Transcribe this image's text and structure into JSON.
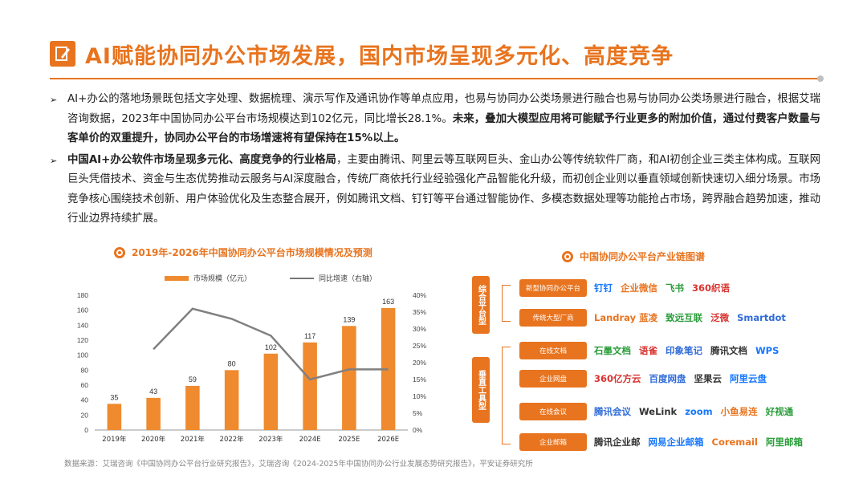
{
  "title": "AI赋能协同办公市场发展，国内市场呈现多元化、高度竞争",
  "bullets": [
    {
      "normal1": "AI+办公的落地场景既包括文字处理、数据梳理、演示写作及通讯协作等单点应用，也易与协同办公类场景进行融合也易与协同办公类场景进行融合，根据艾瑞咨询数据，2023年中国协同办公平台市场规模达到102亿元，同比增长28.1%。",
      "bold1": "未来，叠加大模型应用将可能赋予行业更多的附加价值，通过付费客户数量与客单价的双重提升，协同办公平台的市场增速将有望保持在15%以上。",
      "normal2": ""
    },
    {
      "bold1": "中国AI+办公软件市场呈现多元化、高度竞争的行业格局",
      "normal1": "，主要由腾讯、阿里云等互联网巨头、金山办公等传统软件厂商，和AI初创企业三类主体构成。互联网巨头凭借技术、资金与生态优势推动云服务与AI深度融合，传统厂商依托行业经验强化产品智能化升级，而初创企业则以垂直领域创新快速切入细分场景。市场竞争核心围绕技术创新、用户体验优化及生态整合展开，例如腾讯文档、钉钉等平台通过智能协作、多模态数据处理等功能抢占市场，跨界融合趋势加速，推动行业边界持续扩展。"
    }
  ],
  "chart_title": "2019年-2026年中国协同办公平台市场规模情况及预测",
  "chart_data": {
    "type": "bar",
    "categories": [
      "2019年",
      "2020年",
      "2021年",
      "2022年",
      "2023年",
      "2024E",
      "2025E",
      "2026E"
    ],
    "series": [
      {
        "name": "市场规模（亿元）",
        "values": [
          35,
          43,
          59,
          80,
          102,
          117,
          139,
          163
        ]
      },
      {
        "name": "同比增速（右轴）",
        "values": [
          null,
          24.0,
          36.0,
          33.0,
          28.0,
          15.0,
          18.0,
          18.0
        ]
      }
    ],
    "left_ticks": [
      "0",
      "20",
      "40",
      "60",
      "80",
      "100",
      "120",
      "140",
      "160",
      "180"
    ],
    "right_ticks": [
      "0%",
      "5%",
      "10%",
      "15%",
      "20%",
      "25%",
      "30%",
      "35%",
      "40%"
    ],
    "ylim_left": [
      0,
      180
    ],
    "ylim_right": [
      0,
      40
    ],
    "bar_color": "#ef8a2e",
    "line_color": "#808080"
  },
  "source": "数据来源：艾瑞咨询《中国协同办公平台行业研究报告》，艾瑞咨询《2024-2025年中国协同办公行业发展态势研究报告》，平安证券研究所",
  "chain": {
    "title": "中国协同办公平台产业链图谱",
    "groups": [
      "综合平台型",
      "垂直工具型"
    ],
    "rows": [
      {
        "cat": "新型协同办公平台",
        "brands": [
          "钉钉",
          "企业微信",
          "飞书",
          "360织语"
        ]
      },
      {
        "cat": "传统大型厂商",
        "brands": [
          "Landray 蓝凌",
          "致远互联",
          "泛微",
          "Smartdot"
        ]
      },
      {
        "cat": "在线文档",
        "brands": [
          "石墨文档",
          "语雀",
          "印象笔记",
          "腾讯文档",
          "WPS"
        ]
      },
      {
        "cat": "企业网盘",
        "brands": [
          "360亿方云",
          "百度网盘",
          "坚果云",
          "阿里云盘"
        ]
      },
      {
        "cat": "在线会议",
        "brands": [
          "腾讯会议",
          "WeLink",
          "zoom",
          "小鱼易连",
          "好视通"
        ]
      },
      {
        "cat": "企业邮箱",
        "brands": [
          "腾讯企业邮",
          "网易企业邮箱",
          "Coremail",
          "阿里邮箱"
        ]
      }
    ]
  }
}
